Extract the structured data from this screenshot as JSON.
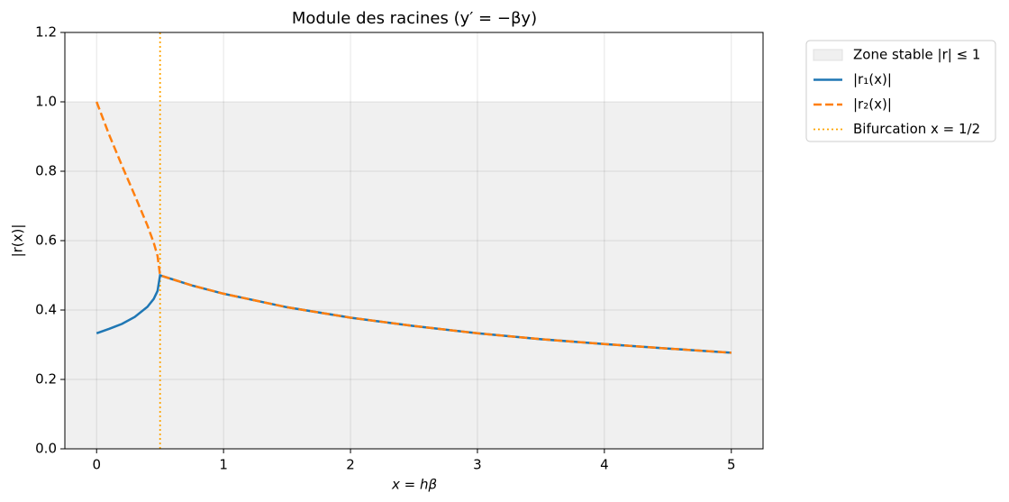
{
  "chart_data": {
    "type": "line",
    "title": "Module des racines (y′ = −βy)",
    "x_label": "x = hβ",
    "y_label": "|r(x)|",
    "x": [
      0,
      0.1,
      0.2,
      0.3,
      0.4,
      0.45,
      0.48,
      0.5,
      0.75,
      1,
      1.5,
      2,
      2.5,
      3,
      3.5,
      4,
      4.5,
      5
    ],
    "series": [
      {
        "name": "|r₁(x)|",
        "color": "#1f77b4",
        "dash": "solid",
        "values": [
          0.333,
          0.346,
          0.36,
          0.38,
          0.409,
          0.432,
          0.455,
          0.5,
          0.471,
          0.447,
          0.408,
          0.378,
          0.354,
          0.333,
          0.316,
          0.302,
          0.289,
          0.277
        ]
      },
      {
        "name": "|r₂(x)|",
        "color": "#ff7f0e",
        "dash": "dashed",
        "values": [
          1,
          0.904,
          0.816,
          0.731,
          0.644,
          0.594,
          0.556,
          0.5,
          0.471,
          0.447,
          0.408,
          0.378,
          0.354,
          0.333,
          0.316,
          0.302,
          0.289,
          0.277
        ]
      }
    ],
    "stable_zone": {
      "name": "Zone stable |r| ≤ 1",
      "range": [
        0,
        1
      ],
      "color": "#f0f0f0"
    },
    "bifurcation": {
      "name": "Bifurcation x = 1/2",
      "x": 0.5,
      "color": "#ffa500"
    },
    "xlim": [
      -0.25,
      5.25
    ],
    "xticks": [
      0,
      1,
      2,
      3,
      4,
      5
    ],
    "ylim": [
      0,
      1.2
    ],
    "yticks": [
      {
        "value": 0,
        "label": "0.0"
      },
      0.2,
      0.4,
      0.6,
      0.8,
      {
        "value": 1,
        "label": "1.0"
      },
      1.2
    ],
    "grid": true,
    "legend": "outside-top-right"
  }
}
